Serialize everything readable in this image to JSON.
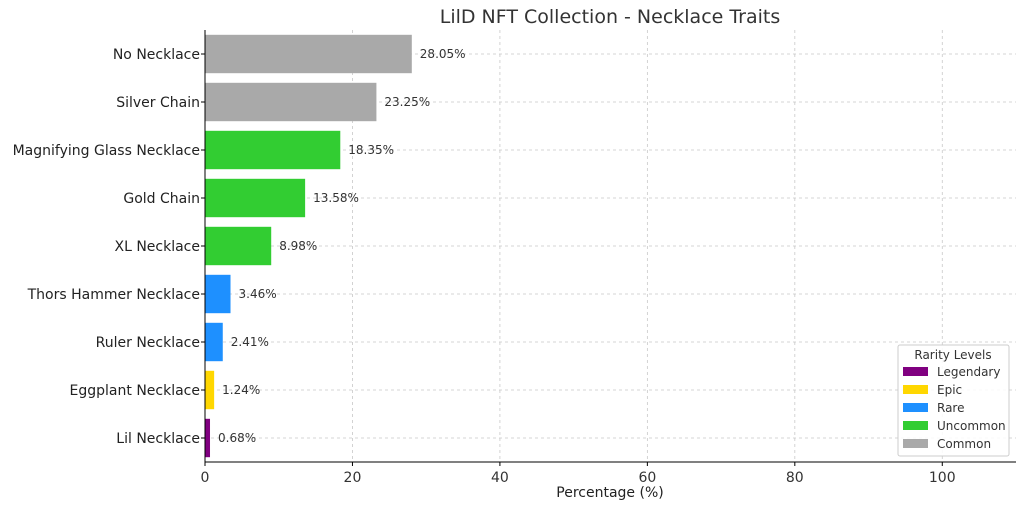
{
  "chart_data": {
    "type": "bar",
    "orientation": "horizontal",
    "title": "LilD NFT Collection - Necklace Traits",
    "xlabel": "Percentage (%)",
    "ylabel": "",
    "xlim": [
      0,
      110
    ],
    "xticks": [
      0,
      20,
      40,
      60,
      80,
      100
    ],
    "grid": true,
    "categories": [
      "No Necklace",
      "Silver Chain",
      "Magnifying Glass Necklace",
      "Gold Chain",
      "XL Necklace",
      "Thors Hammer Necklace",
      "Ruler Necklace",
      "Eggplant Necklace",
      "Lil Necklace"
    ],
    "values": [
      28.05,
      23.25,
      18.35,
      13.58,
      8.98,
      3.46,
      2.41,
      1.24,
      0.68
    ],
    "labels": [
      "28.05%",
      "23.25%",
      "18.35%",
      "13.58%",
      "8.98%",
      "3.46%",
      "2.41%",
      "1.24%",
      "0.68%"
    ],
    "rarity": [
      "Common",
      "Common",
      "Uncommon",
      "Uncommon",
      "Uncommon",
      "Rare",
      "Rare",
      "Epic",
      "Legendary"
    ],
    "legend": {
      "title": "Rarity Levels",
      "placement": "bottom-right",
      "entries": [
        {
          "name": "Legendary",
          "color": "#800080"
        },
        {
          "name": "Epic",
          "color": "#FFD700"
        },
        {
          "name": "Rare",
          "color": "#1E90FF"
        },
        {
          "name": "Uncommon",
          "color": "#32CD32"
        },
        {
          "name": "Common",
          "color": "#A9A9A9"
        }
      ]
    }
  }
}
